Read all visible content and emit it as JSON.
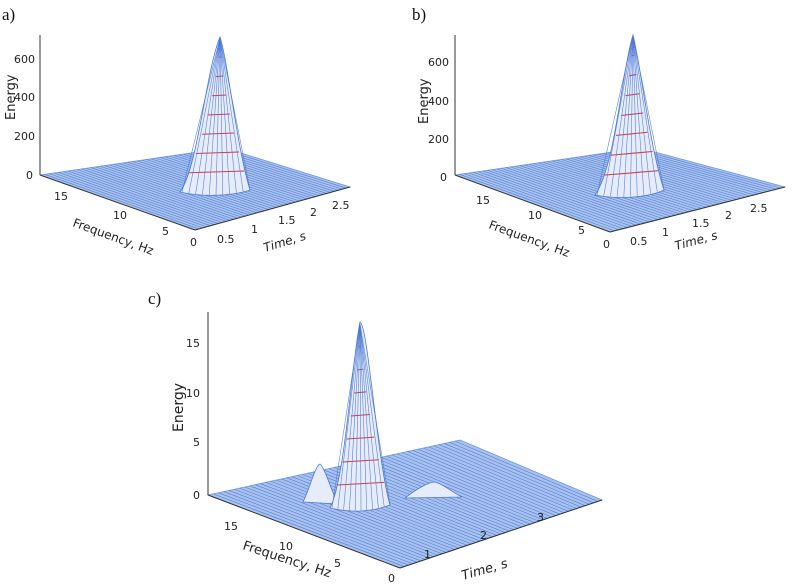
{
  "chart_data": [
    {
      "panel": "a)",
      "type": "surface3d",
      "zlabel": "Energy",
      "xlabel": "Frequency, Hz",
      "ylabel": "Time, s",
      "zticks": [
        "0",
        "200",
        "400",
        "600"
      ],
      "freq_ticks": [
        "15",
        "10",
        "5",
        "0"
      ],
      "time_ticks": [
        "0.5",
        "1",
        "1.5",
        "2",
        "2.5"
      ],
      "zlim": [
        0,
        700
      ],
      "peak": {
        "frequency": 0,
        "time": 0.5,
        "energy": 690
      },
      "colors": {
        "mesh": "#4a78d6",
        "surface": "#a9c2ee",
        "contour": "#d63a3a"
      }
    },
    {
      "panel": "b)",
      "type": "surface3d",
      "zlabel": "Energy",
      "xlabel": "Frequency, Hz",
      "ylabel": "Time, s",
      "zticks": [
        "0",
        "200",
        "400",
        "600"
      ],
      "freq_ticks": [
        "15",
        "10",
        "5",
        "0"
      ],
      "time_ticks": [
        "0.5",
        "1",
        "1.5",
        "2",
        "2.5"
      ],
      "zlim": [
        0,
        700
      ],
      "peak": {
        "frequency": 0,
        "time": 0.5,
        "energy": 715
      },
      "colors": {
        "mesh": "#4a78d6",
        "surface": "#a9c2ee",
        "contour": "#d63a3a"
      }
    },
    {
      "panel": "c)",
      "type": "surface3d",
      "zlabel": "Energy",
      "xlabel": "Frequency, Hz",
      "ylabel": "Time, s",
      "zticks": [
        "0",
        "5",
        "10",
        "15"
      ],
      "freq_ticks": [
        "15",
        "10",
        "5",
        "0"
      ],
      "time_ticks": [
        "1",
        "2",
        "3"
      ],
      "zlim": [
        0,
        17
      ],
      "peak": {
        "frequency": 3,
        "time": 0.7,
        "energy": 16.8
      },
      "secondary_peaks": [
        {
          "frequency": 8,
          "time": 0.3,
          "energy": 3
        },
        {
          "frequency": 2,
          "time": 1.1,
          "energy": 1.5
        }
      ],
      "colors": {
        "mesh": "#4a78d6",
        "surface": "#a9c2ee",
        "contour": "#d63a3a"
      }
    }
  ]
}
